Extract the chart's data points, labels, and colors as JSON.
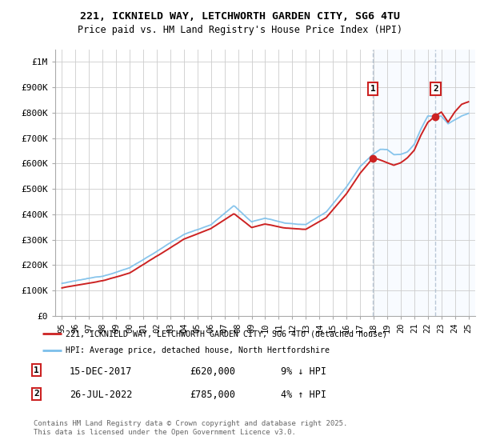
{
  "title1": "221, ICKNIELD WAY, LETCHWORTH GARDEN CITY, SG6 4TU",
  "title2": "Price paid vs. HM Land Registry's House Price Index (HPI)",
  "ylabel_ticks": [
    "£0",
    "£100K",
    "£200K",
    "£300K",
    "£400K",
    "£500K",
    "£600K",
    "£700K",
    "£800K",
    "£900K",
    "£1M"
  ],
  "ytick_vals": [
    0,
    100000,
    200000,
    300000,
    400000,
    500000,
    600000,
    700000,
    800000,
    900000,
    1000000
  ],
  "ylim": [
    0,
    1050000
  ],
  "xlim_start": 1994.5,
  "xlim_end": 2025.5,
  "background_color": "#ffffff",
  "plot_bg_color": "#ffffff",
  "grid_color": "#cccccc",
  "hpi_color": "#7bbfea",
  "price_color": "#cc2222",
  "highlight_color": "#ddeeff",
  "vline_color": "#aabbcc",
  "marker1_x": 2017.96,
  "marker2_x": 2022.57,
  "marker1_y": 620000,
  "marker2_y": 785000,
  "annotation1": {
    "date": "15-DEC-2017",
    "price": "£620,000",
    "hpi": "9% ↓ HPI"
  },
  "annotation2": {
    "date": "26-JUL-2022",
    "price": "£785,000",
    "hpi": "4% ↑ HPI"
  },
  "legend1": "221, ICKNIELD WAY, LETCHWORTH GARDEN CITY, SG6 4TU (detached house)",
  "legend2": "HPI: Average price, detached house, North Hertfordshire",
  "footer": "Contains HM Land Registry data © Crown copyright and database right 2025.\nThis data is licensed under the Open Government Licence v3.0.",
  "xtick_years": [
    1995,
    1996,
    1997,
    1998,
    1999,
    2000,
    2001,
    2002,
    2003,
    2004,
    2005,
    2006,
    2007,
    2008,
    2009,
    2010,
    2011,
    2012,
    2013,
    2014,
    2015,
    2016,
    2017,
    2018,
    2019,
    2020,
    2021,
    2022,
    2023,
    2024,
    2025
  ]
}
